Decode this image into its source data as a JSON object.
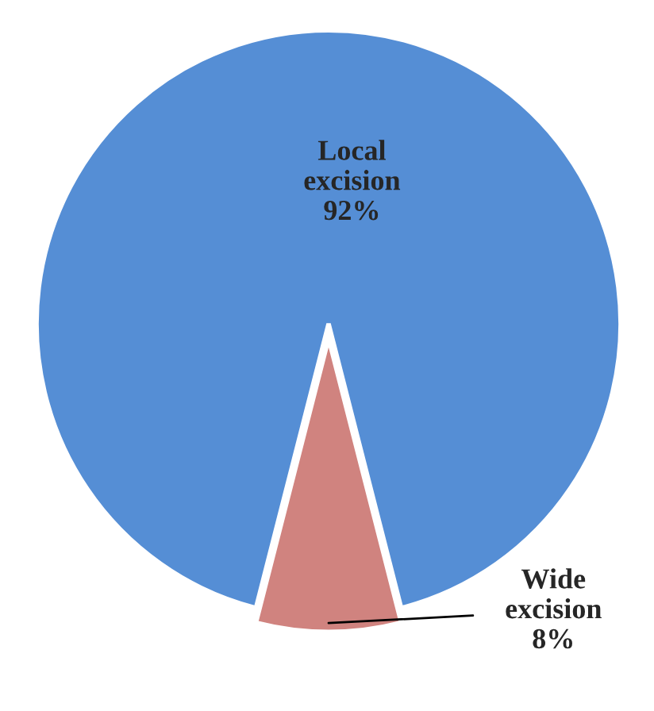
{
  "chart_data": {
    "type": "pie",
    "categories": [
      "Local excision",
      "Wide excision"
    ],
    "values": [
      92,
      8
    ],
    "value_labels": [
      "92%",
      "8%"
    ],
    "colors": [
      "#558ed5",
      "#d0837f"
    ]
  }
}
